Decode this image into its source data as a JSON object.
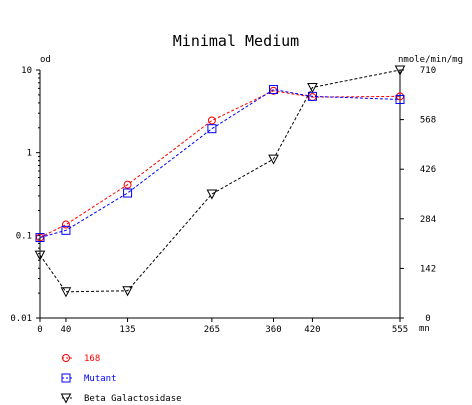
{
  "chart_data": {
    "type": "line",
    "title": "Minimal Medium",
    "x": [
      0,
      40,
      135,
      265,
      360,
      420,
      555
    ],
    "x_ticks": [
      "0",
      "40",
      "135",
      "265",
      "360",
      "420",
      "555"
    ],
    "x_unit": "mn",
    "xlim": [
      0,
      555
    ],
    "y_left": {
      "label": "od",
      "scale": "log",
      "range": [
        0.01,
        10
      ],
      "ticks": [
        "10",
        "1",
        "0.1",
        "0.01"
      ]
    },
    "y_right": {
      "label": "nmole/min/mg",
      "scale": "linear",
      "range": [
        0,
        710
      ],
      "ticks": [
        "710",
        "568",
        "426",
        "284",
        "142",
        "0"
      ]
    },
    "series": [
      {
        "name": "168",
        "axis": "left",
        "marker": "circle",
        "color": "#ff0000",
        "values": [
          0.094,
          0.135,
          0.41,
          2.45,
          5.6,
          4.7,
          4.8
        ]
      },
      {
        "name": "Mutant",
        "axis": "left",
        "marker": "square",
        "color": "#0000ff",
        "values": [
          0.094,
          0.115,
          0.325,
          1.95,
          5.8,
          4.8,
          4.4
        ]
      },
      {
        "name": "Beta Galactosidase",
        "axis": "right",
        "marker": "triangle-down",
        "color": "#000000",
        "values": [
          180,
          75,
          78,
          355,
          455,
          660,
          710
        ]
      }
    ],
    "grid": false,
    "legend_position": "bottom-left"
  }
}
